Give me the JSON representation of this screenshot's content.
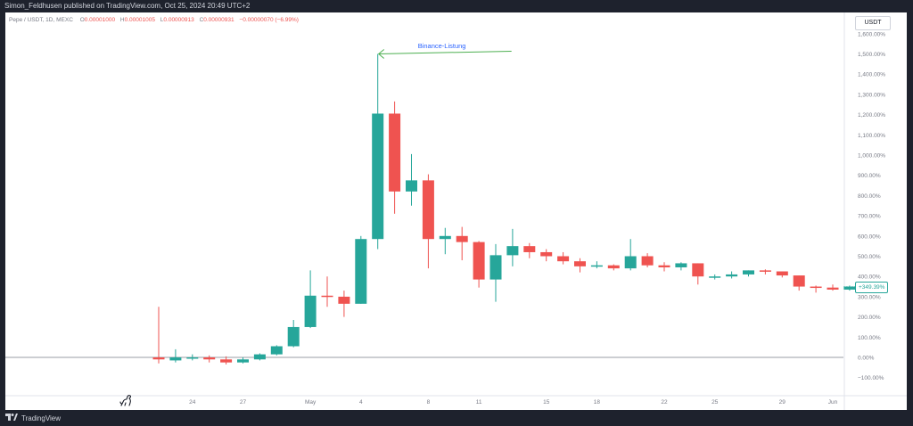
{
  "publish_line": "Simon_Feldhusen published on TradingView.com, Oct 25, 2024 20:49 UTC+2",
  "symbol": {
    "name": "Pepe / USDT, 1D, MEXC",
    "open_label": "O",
    "open": "0.00001000",
    "high_label": "H",
    "high": "0.00001005",
    "low_label": "L",
    "low": "0.00000913",
    "close_label": "C",
    "close": "0.00000931",
    "change": "−0.00000070 (−6.99%)"
  },
  "pair_badge": "USDT",
  "current_value_label": "+349.39%",
  "footer": {
    "brand": "TradingView"
  },
  "annotation": {
    "text": "Binance-Listung"
  },
  "colors": {
    "up": "#26a69a",
    "down": "#ef5350",
    "annotation_arrow": "#4caf50",
    "annotation_text": "#2962ff",
    "background": "#ffffff",
    "frame": "#1e222d"
  },
  "icons": [
    "dinosaur-icon",
    "tradingview-logo-icon"
  ],
  "chart_data": {
    "type": "candlestick",
    "title": "",
    "unit": "% change",
    "y_scale": "percentage",
    "ylim": [
      -120,
      1660
    ],
    "y_ticks": [
      -100,
      0,
      100,
      200,
      300,
      400,
      500,
      600,
      700,
      800,
      900,
      1000,
      1100,
      1200,
      1300,
      1400,
      1500,
      1600
    ],
    "y_tick_labels": [
      "−100.00%",
      "0.00%",
      "100.00%",
      "200.00%",
      "300.00%",
      "400.00%",
      "500.00%",
      "600.00%",
      "700.00%",
      "800.00%",
      "900.00%",
      "1,000.00%",
      "1,100.00%",
      "1,200.00%",
      "1,300.00%",
      "1,400.00%",
      "1,500.00%",
      "1,600.00%"
    ],
    "x_ticks": [
      {
        "label": "24",
        "index": 2
      },
      {
        "label": "27",
        "index": 5
      },
      {
        "label": "May",
        "index": 9
      },
      {
        "label": "4",
        "index": 12
      },
      {
        "label": "8",
        "index": 16
      },
      {
        "label": "11",
        "index": 19
      },
      {
        "label": "15",
        "index": 23
      },
      {
        "label": "18",
        "index": 26
      },
      {
        "label": "22",
        "index": 30
      },
      {
        "label": "25",
        "index": 33
      },
      {
        "label": "29",
        "index": 37
      },
      {
        "label": "Jun",
        "index": 40
      }
    ],
    "baseline": 0,
    "candles": [
      {
        "date": "Apr 22",
        "o": 0,
        "h": 250,
        "l": -30,
        "c": -10
      },
      {
        "date": "Apr 23",
        "o": -15,
        "h": 40,
        "l": -25,
        "c": 0
      },
      {
        "date": "Apr 24",
        "o": -5,
        "h": 15,
        "l": -15,
        "c": 0
      },
      {
        "date": "Apr 25",
        "o": 0,
        "h": 10,
        "l": -25,
        "c": -10
      },
      {
        "date": "Apr 26",
        "o": -10,
        "h": 5,
        "l": -35,
        "c": -25
      },
      {
        "date": "Apr 27",
        "o": -25,
        "h": 0,
        "l": -30,
        "c": -10
      },
      {
        "date": "Apr 28",
        "o": -10,
        "h": 20,
        "l": -15,
        "c": 15
      },
      {
        "date": "Apr 29",
        "o": 15,
        "h": 60,
        "l": 10,
        "c": 55
      },
      {
        "date": "Apr 30",
        "o": 55,
        "h": 185,
        "l": 50,
        "c": 150
      },
      {
        "date": "May 1",
        "o": 150,
        "h": 430,
        "l": 145,
        "c": 305
      },
      {
        "date": "May 2",
        "o": 305,
        "h": 400,
        "l": 250,
        "c": 300
      },
      {
        "date": "May 3",
        "o": 300,
        "h": 330,
        "l": 200,
        "c": 265
      },
      {
        "date": "May 4",
        "o": 265,
        "h": 600,
        "l": 265,
        "c": 585
      },
      {
        "date": "May 5",
        "o": 585,
        "h": 1500,
        "l": 535,
        "c": 1205
      },
      {
        "date": "May 6",
        "o": 1205,
        "h": 1265,
        "l": 710,
        "c": 820
      },
      {
        "date": "May 7",
        "o": 820,
        "h": 1005,
        "l": 750,
        "c": 875
      },
      {
        "date": "May 8",
        "o": 875,
        "h": 905,
        "l": 440,
        "c": 585
      },
      {
        "date": "May 9",
        "o": 585,
        "h": 640,
        "l": 510,
        "c": 600
      },
      {
        "date": "May 10",
        "o": 600,
        "h": 645,
        "l": 480,
        "c": 570
      },
      {
        "date": "May 11",
        "o": 570,
        "h": 575,
        "l": 345,
        "c": 385
      },
      {
        "date": "May 12",
        "o": 385,
        "h": 560,
        "l": 275,
        "c": 505
      },
      {
        "date": "May 13",
        "o": 505,
        "h": 635,
        "l": 450,
        "c": 550
      },
      {
        "date": "May 14",
        "o": 550,
        "h": 565,
        "l": 490,
        "c": 520
      },
      {
        "date": "May 15",
        "o": 520,
        "h": 535,
        "l": 475,
        "c": 500
      },
      {
        "date": "May 16",
        "o": 500,
        "h": 520,
        "l": 460,
        "c": 475
      },
      {
        "date": "May 17",
        "o": 475,
        "h": 490,
        "l": 420,
        "c": 450
      },
      {
        "date": "May 18",
        "o": 450,
        "h": 475,
        "l": 440,
        "c": 455
      },
      {
        "date": "May 19",
        "o": 455,
        "h": 460,
        "l": 430,
        "c": 440
      },
      {
        "date": "May 20",
        "o": 440,
        "h": 585,
        "l": 430,
        "c": 500
      },
      {
        "date": "May 21",
        "o": 500,
        "h": 515,
        "l": 445,
        "c": 455
      },
      {
        "date": "May 22",
        "o": 455,
        "h": 470,
        "l": 425,
        "c": 445
      },
      {
        "date": "May 23",
        "o": 445,
        "h": 470,
        "l": 430,
        "c": 465
      },
      {
        "date": "May 24",
        "o": 465,
        "h": 465,
        "l": 360,
        "c": 400
      },
      {
        "date": "May 25",
        "o": 400,
        "h": 410,
        "l": 385,
        "c": 400
      },
      {
        "date": "May 26",
        "o": 400,
        "h": 425,
        "l": 390,
        "c": 410
      },
      {
        "date": "May 27",
        "o": 410,
        "h": 430,
        "l": 400,
        "c": 430
      },
      {
        "date": "May 28",
        "o": 430,
        "h": 435,
        "l": 410,
        "c": 425
      },
      {
        "date": "May 29",
        "o": 425,
        "h": 425,
        "l": 395,
        "c": 405
      },
      {
        "date": "May 30",
        "o": 405,
        "h": 405,
        "l": 330,
        "c": 350
      },
      {
        "date": "May 31",
        "o": 350,
        "h": 355,
        "l": 320,
        "c": 345
      },
      {
        "date": "Jun 1",
        "o": 345,
        "h": 360,
        "l": 330,
        "c": 335
      },
      {
        "date": "Jun 2",
        "o": 335,
        "h": 355,
        "l": 330,
        "c": 350
      }
    ],
    "annotation": {
      "text": "Binance-Listung",
      "points_to": {
        "date": "May 5",
        "value": 1500
      }
    }
  }
}
